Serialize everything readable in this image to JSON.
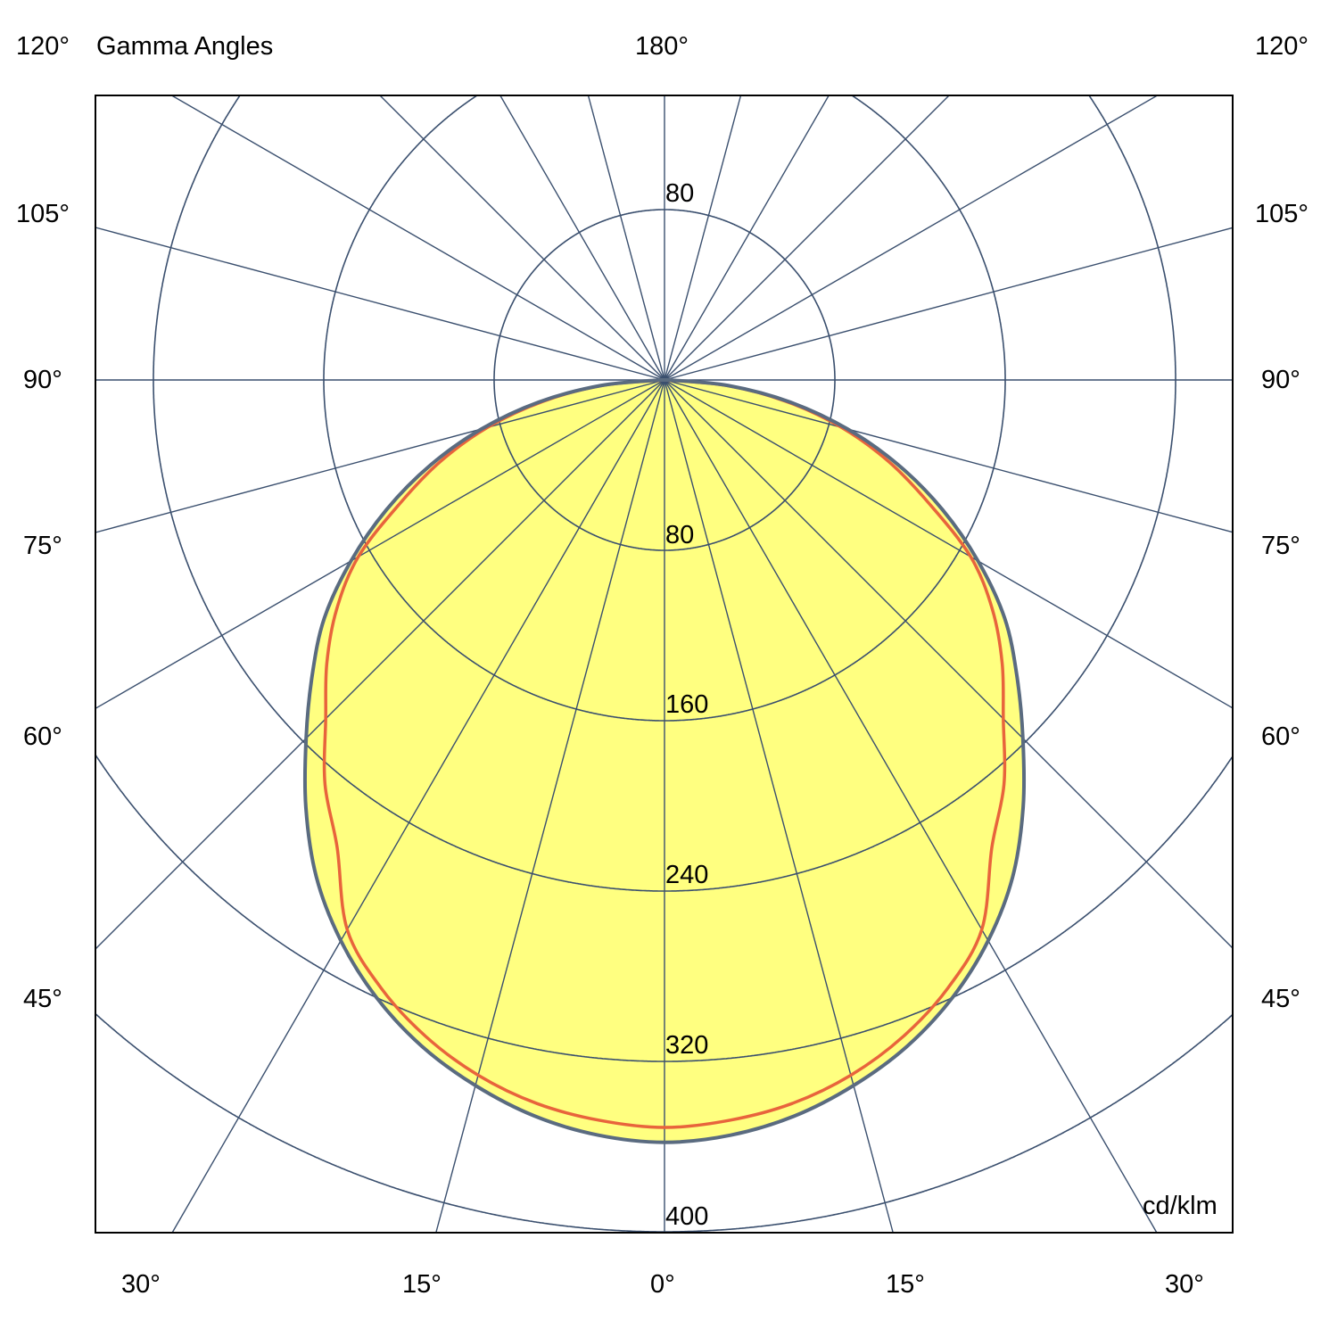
{
  "chart_data": {
    "type": "polar",
    "title": "Gamma Angles",
    "unit": "cd/klm",
    "radial_range": [
      0,
      400
    ],
    "radial_ticks": [
      "80",
      "160",
      "240",
      "320",
      "400"
    ],
    "top_ring_label": "80",
    "angle_labels_left": [
      "120°",
      "105°",
      "90°",
      "75°",
      "60°",
      "45°"
    ],
    "angle_labels_right": [
      "120°",
      "105°",
      "90°",
      "75°",
      "60°",
      "45°"
    ],
    "angle_label_top": "180°",
    "angle_labels_bottom": [
      "30°",
      "15°",
      "0°",
      "15°",
      "30°"
    ],
    "grid": true,
    "grid_angle_step_deg": 15,
    "symmetric": true,
    "gamma": [
      0,
      5,
      10,
      15,
      20,
      25,
      30,
      35,
      40,
      45,
      50,
      55,
      60,
      65,
      70,
      75,
      80,
      85,
      90
    ],
    "series": [
      {
        "color": "#5a6b80",
        "fill": "#ffff80",
        "values": [
          358,
          356,
          351,
          343,
          333,
          320,
          304,
          285,
          262,
          238,
          216,
          195,
          170,
          144,
          117,
          89,
          60,
          30,
          2
        ]
      },
      {
        "color": "#e8643c",
        "values": [
          351,
          349,
          345,
          338,
          328,
          315,
          298,
          268,
          248,
          225,
          207,
          188,
          166,
          137,
          112,
          86,
          58,
          29,
          0
        ]
      }
    ],
    "colors": {
      "grid": "#3a4f6e",
      "frame": "#000000"
    }
  }
}
